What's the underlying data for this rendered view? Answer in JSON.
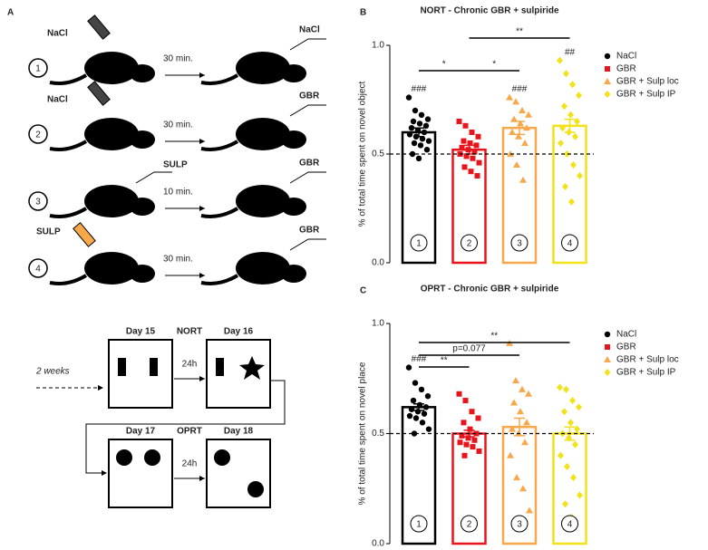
{
  "panel_a": {
    "label": "A",
    "rows": [
      {
        "number": "1",
        "before": "NaCl",
        "delay": "30 min.",
        "after": "NaCl"
      },
      {
        "number": "2",
        "before": "NaCl",
        "delay": "30 min.",
        "after": "GBR"
      },
      {
        "number": "3",
        "before": "SULP",
        "delay": "10 min.",
        "after": "GBR"
      },
      {
        "number": "4",
        "before": "SULP",
        "delay": "30 min.",
        "after": "GBR"
      }
    ],
    "timeline": {
      "start": "2 weeks",
      "day15": "Day 15",
      "nort": "NORT",
      "gap1": "24h",
      "day16": "Day 16",
      "day17": "Day 17",
      "oprt": "OPRT",
      "gap2": "24h",
      "day18": "Day 18"
    }
  },
  "chart_data": [
    {
      "type": "bar",
      "panel": "B",
      "title": "NORT - Chronic GBR + sulpiride",
      "ylabel": "% of total time spent on novel object",
      "categories": [
        "1",
        "2",
        "3",
        "4"
      ],
      "legend": [
        "NaCl",
        "GBR",
        "GBR + Sulp loc",
        "GBR + Sulp IP"
      ],
      "colors": [
        "#000000",
        "#e8141c",
        "#f7a84a",
        "#f2e21a"
      ],
      "markers": [
        "circle",
        "square",
        "triangle",
        "diamond"
      ],
      "values": [
        0.6,
        0.52,
        0.62,
        0.63
      ],
      "errors": [
        0.02,
        0.02,
        0.03,
        0.03
      ],
      "points": [
        [
          0.76,
          0.7,
          0.68,
          0.66,
          0.65,
          0.64,
          0.63,
          0.62,
          0.61,
          0.6,
          0.59,
          0.58,
          0.57,
          0.56,
          0.55,
          0.54,
          0.52,
          0.5,
          0.48
        ],
        [
          0.65,
          0.63,
          0.6,
          0.58,
          0.56,
          0.55,
          0.54,
          0.53,
          0.52,
          0.51,
          0.5,
          0.49,
          0.48,
          0.46,
          0.44,
          0.42,
          0.4
        ],
        [
          0.76,
          0.74,
          0.7,
          0.68,
          0.66,
          0.64,
          0.62,
          0.6,
          0.58,
          0.55,
          0.5,
          0.45,
          0.38
        ],
        [
          0.93,
          0.87,
          0.82,
          0.77,
          0.72,
          0.68,
          0.65,
          0.62,
          0.6,
          0.58,
          0.55,
          0.5,
          0.45,
          0.4,
          0.35,
          0.28
        ]
      ],
      "annotations": [
        "###",
        null,
        "###",
        "##"
      ],
      "brackets": [
        {
          "from": 0,
          "to": 1,
          "label": "*"
        },
        {
          "from": 1,
          "to": 2,
          "label": "*"
        },
        {
          "from": 1,
          "to": 3,
          "label": "**"
        }
      ],
      "refline": 0.5,
      "ylim": [
        0,
        1
      ],
      "yticks": [
        {
          "value": 0,
          "label": "0.0"
        },
        {
          "value": 0.5,
          "label": "0.5"
        },
        {
          "value": 1,
          "label": "1.0"
        }
      ]
    },
    {
      "type": "bar",
      "panel": "C",
      "title": "OPRT - Chronic GBR + sulpiride",
      "ylabel": "% of total time spent on novel place",
      "categories": [
        "1",
        "2",
        "3",
        "4"
      ],
      "legend": [
        "NaCl",
        "GBR",
        "GBR + Sulp loc",
        "GBR + Sulp IP"
      ],
      "colors": [
        "#000000",
        "#e8141c",
        "#f7a84a",
        "#f2e21a"
      ],
      "markers": [
        "circle",
        "square",
        "triangle",
        "diamond"
      ],
      "values": [
        0.62,
        0.5,
        0.53,
        0.5
      ],
      "errors": [
        0.015,
        0.015,
        0.04,
        0.03
      ],
      "points": [
        [
          0.8,
          0.73,
          0.7,
          0.67,
          0.65,
          0.63,
          0.62,
          0.61,
          0.6,
          0.59,
          0.58,
          0.57,
          0.55,
          0.52,
          0.5
        ],
        [
          0.68,
          0.65,
          0.6,
          0.57,
          0.55,
          0.52,
          0.5,
          0.49,
          0.48,
          0.47,
          0.46,
          0.45,
          0.44,
          0.42,
          0.4
        ],
        [
          0.91,
          0.74,
          0.7,
          0.68,
          0.64,
          0.6,
          0.55,
          0.52,
          0.5,
          0.46,
          0.4,
          0.3,
          0.25,
          0.15
        ],
        [
          0.71,
          0.7,
          0.65,
          0.62,
          0.6,
          0.55,
          0.52,
          0.5,
          0.48,
          0.45,
          0.4,
          0.35,
          0.3,
          0.22,
          0.18,
          0.12
        ]
      ],
      "annotations": [
        "###",
        null,
        null,
        null
      ],
      "brackets": [
        {
          "from": 0,
          "to": 1,
          "label": "**"
        },
        {
          "from": 0,
          "to": 2,
          "label": "p=0.077"
        },
        {
          "from": 0,
          "to": 3,
          "label": "**"
        }
      ],
      "refline": 0.5,
      "ylim": [
        0,
        1
      ],
      "yticks": [
        {
          "value": 0,
          "label": "0.0"
        },
        {
          "value": 0.5,
          "label": "0.5"
        },
        {
          "value": 1,
          "label": "1.0"
        }
      ]
    }
  ]
}
